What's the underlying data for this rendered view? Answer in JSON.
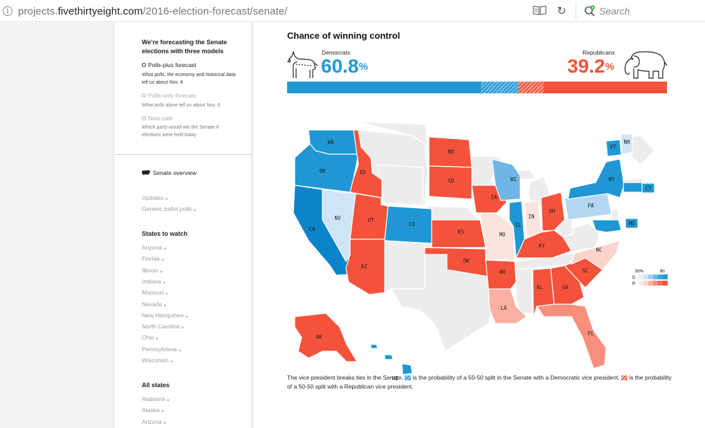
{
  "browser": {
    "url_prefix": "projects.",
    "url_host": "fivethirtyeight.com",
    "url_path": "/2016-election-forecast/senate/",
    "search_placeholder": "Search"
  },
  "sidebar": {
    "heading": "We're forecasting the Senate elections with three models",
    "models": [
      {
        "label": "Polls-plus forecast",
        "desc": "What polls, the economy and historical data tell us about Nov. 8",
        "selected": true
      },
      {
        "label": "Polls-only forecast",
        "desc": "What polls alone tell us about Nov. 8",
        "selected": false
      },
      {
        "label": "Now-cast",
        "desc": "Which party would win the Senate if elections were held today",
        "selected": false
      }
    ],
    "overview_label": "Senate overview",
    "links": [
      "Updates",
      "Generic ballot polls"
    ],
    "states_to_watch_heading": "States to watch",
    "states_to_watch": [
      "Arizona",
      "Florida",
      "Illinois",
      "Indiana",
      "Missouri",
      "Nevada",
      "New Hampshire",
      "North Carolina",
      "Ohio",
      "Pennsylvania",
      "Wisconsin"
    ],
    "all_states_heading": "All states",
    "all_states": [
      "Alabama",
      "Alaska",
      "Arizona"
    ]
  },
  "main": {
    "title": "Chance of winning control",
    "dem_label": "Democrats",
    "dem_value": "60.8",
    "rep_label": "Republicans",
    "rep_value": "39.2",
    "pct_sign": "%",
    "bar": {
      "dem_solid": 51,
      "dem_split": 9.8,
      "rep_split": 6.7,
      "rep_solid": 32.5
    },
    "legend": {
      "low": "50%",
      "high": "90",
      "d": "D",
      "r": "R"
    },
    "caption_1": "The vice president breaks ties in the Senate.",
    "caption_2": "is the probability of a 50-50 split in the Senate with a Democratic vice president.",
    "caption_3": "is the probability of a 50-50 split with a Republican vice president."
  },
  "colors": {
    "dem": "#1f97d4",
    "rep": "#f4523b",
    "no_race": "#ececec"
  },
  "map_states": [
    {
      "abbr": "WA",
      "color": "#1f97d4"
    },
    {
      "abbr": "OR",
      "color": "#1f97d4"
    },
    {
      "abbr": "CA",
      "color": "#0b84c9"
    },
    {
      "abbr": "NV",
      "color": "#cfe5f7"
    },
    {
      "abbr": "ID",
      "color": "#f4523b"
    },
    {
      "abbr": "UT",
      "color": "#f4523b"
    },
    {
      "abbr": "AZ",
      "color": "#f4523b"
    },
    {
      "abbr": "CO",
      "color": "#1f97d4"
    },
    {
      "abbr": "ND",
      "color": "#f4523b"
    },
    {
      "abbr": "SD",
      "color": "#f4523b"
    },
    {
      "abbr": "KS",
      "color": "#f4523b"
    },
    {
      "abbr": "OK",
      "color": "#f4523b"
    },
    {
      "abbr": "IA",
      "color": "#f4523b"
    },
    {
      "abbr": "MO",
      "color": "#fbe3de"
    },
    {
      "abbr": "AR",
      "color": "#f4523b"
    },
    {
      "abbr": "LA",
      "color": "#fbb0a2"
    },
    {
      "abbr": "WI",
      "color": "#6fb6e6"
    },
    {
      "abbr": "IL",
      "color": "#1f97d4"
    },
    {
      "abbr": "IN",
      "color": "#fbe3de"
    },
    {
      "abbr": "OH",
      "color": "#f4523b"
    },
    {
      "abbr": "KY",
      "color": "#f4523b"
    },
    {
      "abbr": "AL",
      "color": "#f4523b"
    },
    {
      "abbr": "GA",
      "color": "#f4523b"
    },
    {
      "abbr": "FL",
      "color": "#f88e7c"
    },
    {
      "abbr": "SC",
      "color": "#f4523b"
    },
    {
      "abbr": "NC",
      "color": "#fbd3cb"
    },
    {
      "abbr": "PA",
      "color": "#b3d6f2"
    },
    {
      "abbr": "NY",
      "color": "#1f97d4"
    },
    {
      "abbr": "VT",
      "color": "#1f97d4"
    },
    {
      "abbr": "NH",
      "color": "#cfe5f7"
    },
    {
      "abbr": "CT",
      "color": "#1f97d4"
    },
    {
      "abbr": "MD",
      "color": "#1f97d4"
    },
    {
      "abbr": "AK",
      "color": "#f4523b"
    },
    {
      "abbr": "HI",
      "color": "#1f97d4"
    }
  ]
}
